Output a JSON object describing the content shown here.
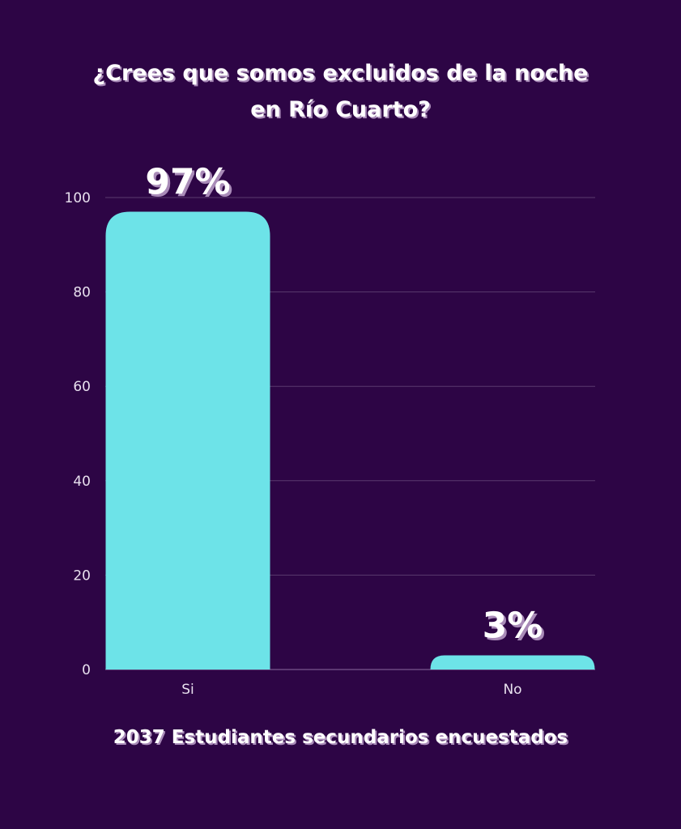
{
  "chart_data": {
    "type": "bar",
    "title_line1": "¿Crees que somos excluidos de la noche",
    "title_line2": "en Río Cuarto?",
    "categories": [
      "Si",
      "No"
    ],
    "values": [
      97,
      3
    ],
    "data_labels": [
      "97%",
      "3%"
    ],
    "ylim": [
      0,
      100
    ],
    "yticks": [
      "0",
      "20",
      "40",
      "60",
      "80",
      "100"
    ],
    "ytick_values": [
      0,
      20,
      40,
      60,
      80,
      100
    ],
    "grid": true,
    "xlabel": "",
    "ylabel": "",
    "footer": "2037 Estudiantes secundarios encuestados",
    "colors": {
      "background": "#2d0545",
      "bar": "#6de3e8",
      "grid": "#5a3a6e"
    }
  }
}
